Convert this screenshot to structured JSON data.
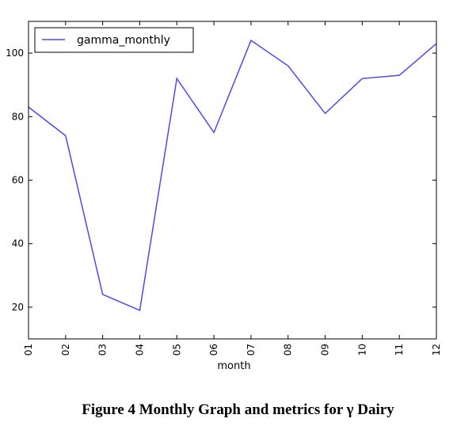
{
  "caption": "Figure 4 Monthly Graph and metrics for γ Dairy",
  "chart_data": {
    "type": "line",
    "categories": [
      "01",
      "02",
      "03",
      "04",
      "05",
      "06",
      "07",
      "08",
      "09",
      "10",
      "11",
      "12"
    ],
    "series": [
      {
        "name": "gamma_monthly",
        "values": [
          83,
          74,
          24,
          19,
          92,
          75,
          104,
          96,
          81,
          92,
          93,
          103
        ],
        "color": "#4a4af0"
      }
    ],
    "xlabel": "month",
    "ylabel": "",
    "ylim": [
      10,
      110
    ],
    "yticks": [
      20,
      40,
      60,
      80,
      100
    ],
    "grid": false,
    "legend_position": "upper-left"
  }
}
